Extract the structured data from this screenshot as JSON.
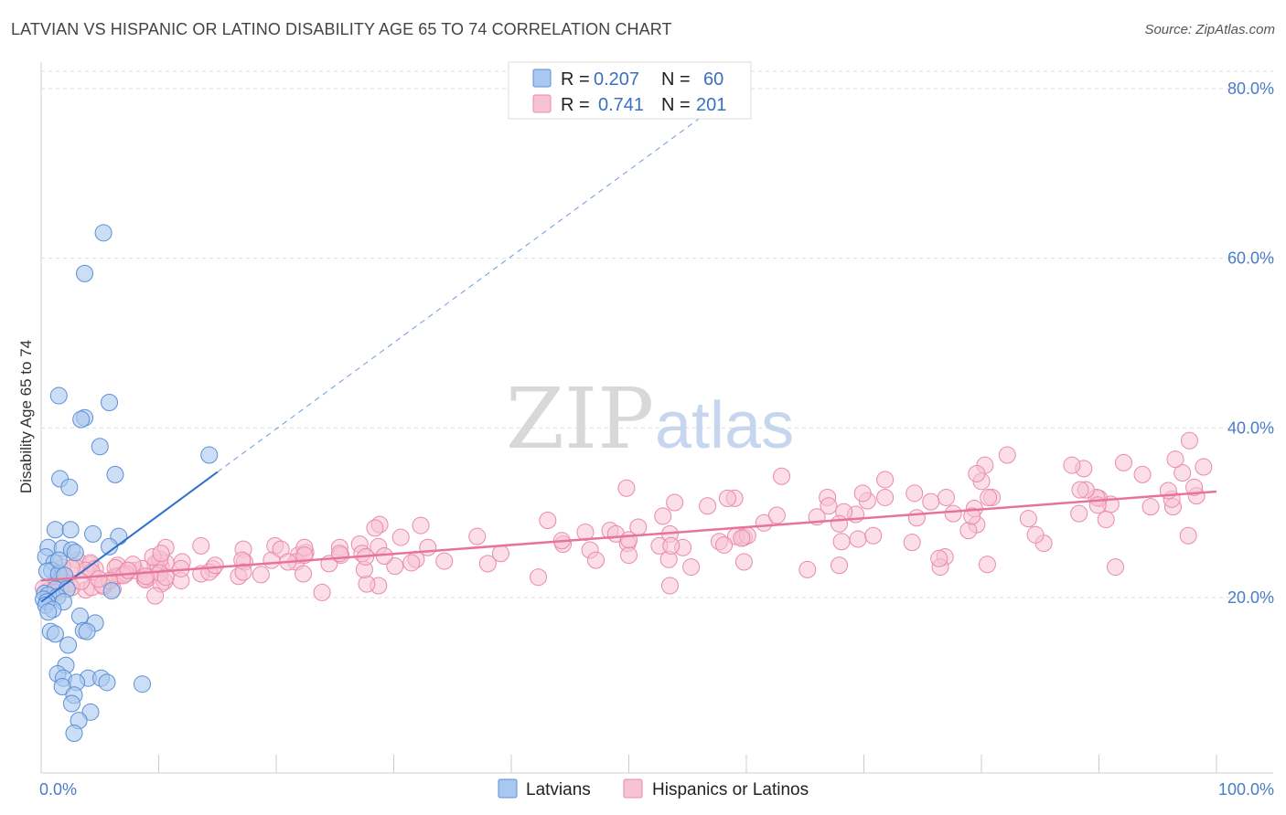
{
  "title": "LATVIAN VS HISPANIC OR LATINO DISABILITY AGE 65 TO 74 CORRELATION CHART",
  "source": "Source: ZipAtlas.com",
  "watermark": {
    "zip": "ZIP",
    "atlas": "atlas"
  },
  "colors": {
    "latvian_fill": "#aac8ef",
    "latvian_stroke": "#5a8fd6",
    "latvian_line": "#2d6fcf",
    "hispanic_fill": "#f7c3d4",
    "hispanic_stroke": "#e98aa9",
    "hispanic_line": "#e8739a",
    "grid": "#dddddd",
    "axis_text": "#4a7cc9"
  },
  "legend": {
    "rows": [
      {
        "r_label": "R =",
        "r_value": "0.207",
        "n_label": "N =",
        "n_value": "60"
      },
      {
        "r_label": "R =",
        "r_value": "0.741",
        "n_label": "N =",
        "n_value": "201"
      }
    ]
  },
  "bottom_legend": {
    "latvians": "Latvians",
    "hispanics": "Hispanics or Latinos"
  },
  "chart_data": {
    "type": "scatter",
    "title": "LATVIAN VS HISPANIC OR LATINO DISABILITY AGE 65 TO 74 CORRELATION CHART",
    "xlabel": "",
    "ylabel": "Disability Age 65 to 74",
    "xlim": [
      0,
      100
    ],
    "ylim": [
      0,
      82
    ],
    "x_tick_labels": [
      "0.0%",
      "100.0%"
    ],
    "y_ticks": [
      20,
      40,
      60,
      80
    ],
    "y_tick_labels": [
      "20.0%",
      "40.0%",
      "60.0%",
      "80.0%"
    ],
    "grid": true,
    "legend_position": "top-center",
    "series": [
      {
        "name": "Latvians",
        "r": 0.207,
        "n": 60,
        "trend": {
          "x": [
            0,
            15
          ],
          "y": [
            19.5,
            34.8
          ],
          "dashed_to": [
            57.0,
            77.5
          ]
        },
        "points": [
          [
            5.3,
            63.0
          ],
          [
            3.7,
            58.2
          ],
          [
            1.5,
            43.8
          ],
          [
            5.8,
            43.0
          ],
          [
            3.7,
            41.2
          ],
          [
            3.4,
            41.0
          ],
          [
            5.0,
            37.8
          ],
          [
            14.3,
            36.8
          ],
          [
            6.3,
            34.5
          ],
          [
            1.6,
            34.0
          ],
          [
            2.4,
            33.0
          ],
          [
            1.2,
            28.0
          ],
          [
            2.5,
            28.0
          ],
          [
            4.4,
            27.5
          ],
          [
            6.6,
            27.2
          ],
          [
            5.8,
            26.0
          ],
          [
            0.6,
            25.9
          ],
          [
            1.8,
            25.8
          ],
          [
            2.6,
            25.6
          ],
          [
            0.4,
            24.8
          ],
          [
            1.1,
            24.1
          ],
          [
            0.9,
            23.2
          ],
          [
            0.5,
            23.1
          ],
          [
            1.5,
            22.8
          ],
          [
            2.0,
            22.6
          ],
          [
            0.3,
            20.5
          ],
          [
            1.2,
            21.0
          ],
          [
            2.2,
            21.0
          ],
          [
            6.0,
            20.8
          ],
          [
            0.6,
            20.3
          ],
          [
            1.4,
            20.1
          ],
          [
            0.2,
            19.8
          ],
          [
            0.5,
            19.5
          ],
          [
            1.9,
            19.5
          ],
          [
            0.4,
            19.1
          ],
          [
            1.0,
            18.6
          ],
          [
            0.6,
            18.3
          ],
          [
            3.3,
            17.8
          ],
          [
            4.6,
            17.0
          ],
          [
            3.6,
            16.1
          ],
          [
            3.9,
            16.0
          ],
          [
            0.8,
            16.0
          ],
          [
            1.2,
            15.7
          ],
          [
            2.3,
            14.4
          ],
          [
            2.1,
            12.0
          ],
          [
            1.4,
            11.0
          ],
          [
            1.9,
            10.5
          ],
          [
            4.0,
            10.5
          ],
          [
            5.1,
            10.5
          ],
          [
            3.0,
            10.0
          ],
          [
            5.6,
            10.0
          ],
          [
            8.6,
            9.8
          ],
          [
            1.8,
            9.5
          ],
          [
            2.8,
            8.5
          ],
          [
            2.6,
            7.5
          ],
          [
            4.2,
            6.5
          ],
          [
            3.2,
            5.5
          ],
          [
            2.8,
            4.0
          ],
          [
            1.5,
            24.4
          ],
          [
            2.9,
            25.3
          ]
        ]
      },
      {
        "name": "Hispanics or Latinos",
        "r": 0.741,
        "n": 201,
        "trend": {
          "x": [
            0,
            100
          ],
          "y": [
            22.0,
            32.5
          ]
        },
        "points": []
      }
    ]
  }
}
